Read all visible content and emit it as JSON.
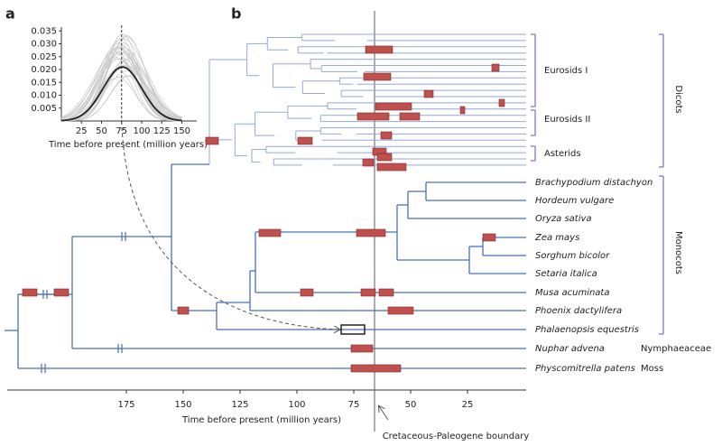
{
  "panels": {
    "a": "a",
    "b": "b"
  },
  "inset": {
    "xticks": [
      25,
      50,
      75,
      100,
      125,
      150
    ],
    "yticks": [
      0.005,
      0.01,
      0.015,
      0.02,
      0.025,
      0.03,
      0.035
    ],
    "ytick_labels": [
      "0.005",
      "0.010",
      "0.015",
      "0.020",
      "0.025",
      "0.030",
      "0.035"
    ],
    "xlabel": "Time before present (million years)"
  },
  "tree": {
    "taxa": [
      "Brachypodium distachyon",
      "Hordeum vulgare",
      "Oryza sativa",
      "Zea mays",
      "Sorghum bicolor",
      "Setaria italica",
      "Musa acuminata",
      "Phoenix dactylifera",
      "Phalaenopsis equestris",
      "Nuphar advena",
      "Physcomitrella patens"
    ],
    "clades": [
      "Eurosids I",
      "Eurosids II",
      "Asterids"
    ],
    "groups": [
      "Dicots",
      "Monocots"
    ],
    "outgroups": [
      "Nymphaeaceae",
      "Moss"
    ]
  },
  "axis": {
    "ticks": [
      175,
      150,
      125,
      100,
      75,
      50,
      25
    ],
    "label": "Time before present (million years)"
  },
  "annotation": "Cretaceous-Paleogene boundary"
}
